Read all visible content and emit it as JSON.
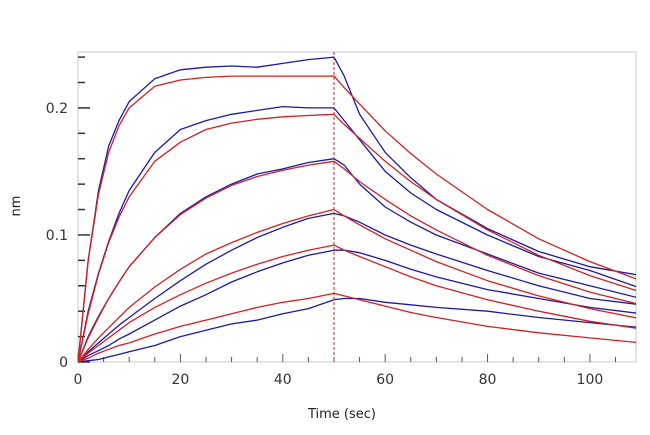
{
  "chart_data": {
    "type": "line",
    "title": "",
    "xlabel": "Time (sec)",
    "ylabel": "nm",
    "xlim": [
      0,
      109
    ],
    "ylim": [
      0,
      0.244
    ],
    "x_ticks": [
      0,
      20,
      40,
      60,
      80,
      100
    ],
    "x_tick_labels": [
      "0",
      "20",
      "40",
      "60",
      "80",
      "100"
    ],
    "x_minor_step": 5,
    "y_ticks": [
      0,
      0.1,
      0.2
    ],
    "y_tick_labels": [
      "0",
      "0.1",
      "0.2"
    ],
    "y_minor_step": 0.02,
    "grid": false,
    "legend": "none",
    "marker_line_x": 50,
    "colors": {
      "data": "#1a1aa6",
      "fit": "#d42020",
      "axis_frame": "#c8c8c8"
    },
    "x": [
      0,
      2,
      4,
      6,
      8,
      10,
      15,
      20,
      25,
      30,
      35,
      40,
      45,
      50,
      52,
      55,
      60,
      65,
      70,
      80,
      90,
      100,
      110
    ],
    "data_series": [
      {
        "values": [
          0,
          0.08,
          0.135,
          0.17,
          0.19,
          0.205,
          0.223,
          0.23,
          0.232,
          0.233,
          0.232,
          0.235,
          0.238,
          0.24,
          0.225,
          0.195,
          0.165,
          0.145,
          0.128,
          0.105,
          0.087,
          0.075,
          0.068
        ]
      },
      {
        "values": [
          0,
          0.04,
          0.07,
          0.095,
          0.117,
          0.135,
          0.165,
          0.183,
          0.19,
          0.195,
          0.198,
          0.201,
          0.2,
          0.2,
          0.19,
          0.175,
          0.15,
          0.133,
          0.12,
          0.1,
          0.083,
          0.072,
          0.058
        ]
      },
      {
        "values": [
          0,
          0.02,
          0.036,
          0.05,
          0.063,
          0.075,
          0.098,
          0.117,
          0.13,
          0.14,
          0.148,
          0.152,
          0.157,
          0.16,
          0.155,
          0.14,
          0.122,
          0.11,
          0.1,
          0.085,
          0.07,
          0.06,
          0.05
        ]
      },
      {
        "values": [
          0,
          0.008,
          0.015,
          0.022,
          0.029,
          0.035,
          0.05,
          0.064,
          0.077,
          0.088,
          0.098,
          0.106,
          0.113,
          0.117,
          0.115,
          0.11,
          0.1,
          0.092,
          0.085,
          0.072,
          0.06,
          0.05,
          0.045
        ]
      },
      {
        "values": [
          0,
          0.005,
          0.009,
          0.013,
          0.018,
          0.022,
          0.033,
          0.044,
          0.053,
          0.063,
          0.071,
          0.078,
          0.084,
          0.088,
          0.088,
          0.086,
          0.08,
          0.073,
          0.067,
          0.057,
          0.05,
          0.043,
          0.038
        ]
      },
      {
        "values": [
          0,
          0.001,
          0.002,
          0.004,
          0.006,
          0.008,
          0.013,
          0.02,
          0.025,
          0.03,
          0.033,
          0.038,
          0.042,
          0.049,
          0.05,
          0.05,
          0.047,
          0.045,
          0.043,
          0.04,
          0.035,
          0.031,
          0.027
        ]
      }
    ],
    "fit_series": [
      {
        "values": [
          0,
          0.08,
          0.132,
          0.165,
          0.186,
          0.2,
          0.217,
          0.222,
          0.224,
          0.225,
          0.225,
          0.225,
          0.225,
          0.225,
          0.216,
          0.203,
          0.182,
          0.164,
          0.148,
          0.12,
          0.097,
          0.079,
          0.064
        ]
      },
      {
        "values": [
          0,
          0.038,
          0.069,
          0.094,
          0.114,
          0.13,
          0.158,
          0.173,
          0.183,
          0.188,
          0.191,
          0.193,
          0.194,
          0.195,
          0.187,
          0.176,
          0.158,
          0.142,
          0.128,
          0.104,
          0.084,
          0.068,
          0.055
        ]
      },
      {
        "values": [
          0,
          0.019,
          0.035,
          0.05,
          0.063,
          0.075,
          0.098,
          0.116,
          0.129,
          0.139,
          0.146,
          0.151,
          0.155,
          0.158,
          0.152,
          0.142,
          0.128,
          0.115,
          0.104,
          0.084,
          0.068,
          0.055,
          0.045
        ]
      },
      {
        "values": [
          0,
          0.01,
          0.019,
          0.027,
          0.035,
          0.043,
          0.059,
          0.073,
          0.085,
          0.094,
          0.102,
          0.109,
          0.115,
          0.12,
          0.115,
          0.108,
          0.097,
          0.088,
          0.079,
          0.064,
          0.052,
          0.042,
          0.034
        ]
      },
      {
        "values": [
          0,
          0.007,
          0.013,
          0.019,
          0.025,
          0.031,
          0.043,
          0.053,
          0.062,
          0.07,
          0.077,
          0.083,
          0.088,
          0.092,
          0.088,
          0.083,
          0.075,
          0.067,
          0.06,
          0.049,
          0.04,
          0.032,
          0.026
        ]
      },
      {
        "values": [
          0,
          0.003,
          0.007,
          0.01,
          0.013,
          0.015,
          0.022,
          0.028,
          0.033,
          0.038,
          0.043,
          0.047,
          0.05,
          0.054,
          0.052,
          0.049,
          0.044,
          0.039,
          0.035,
          0.028,
          0.023,
          0.019,
          0.015
        ]
      }
    ]
  }
}
